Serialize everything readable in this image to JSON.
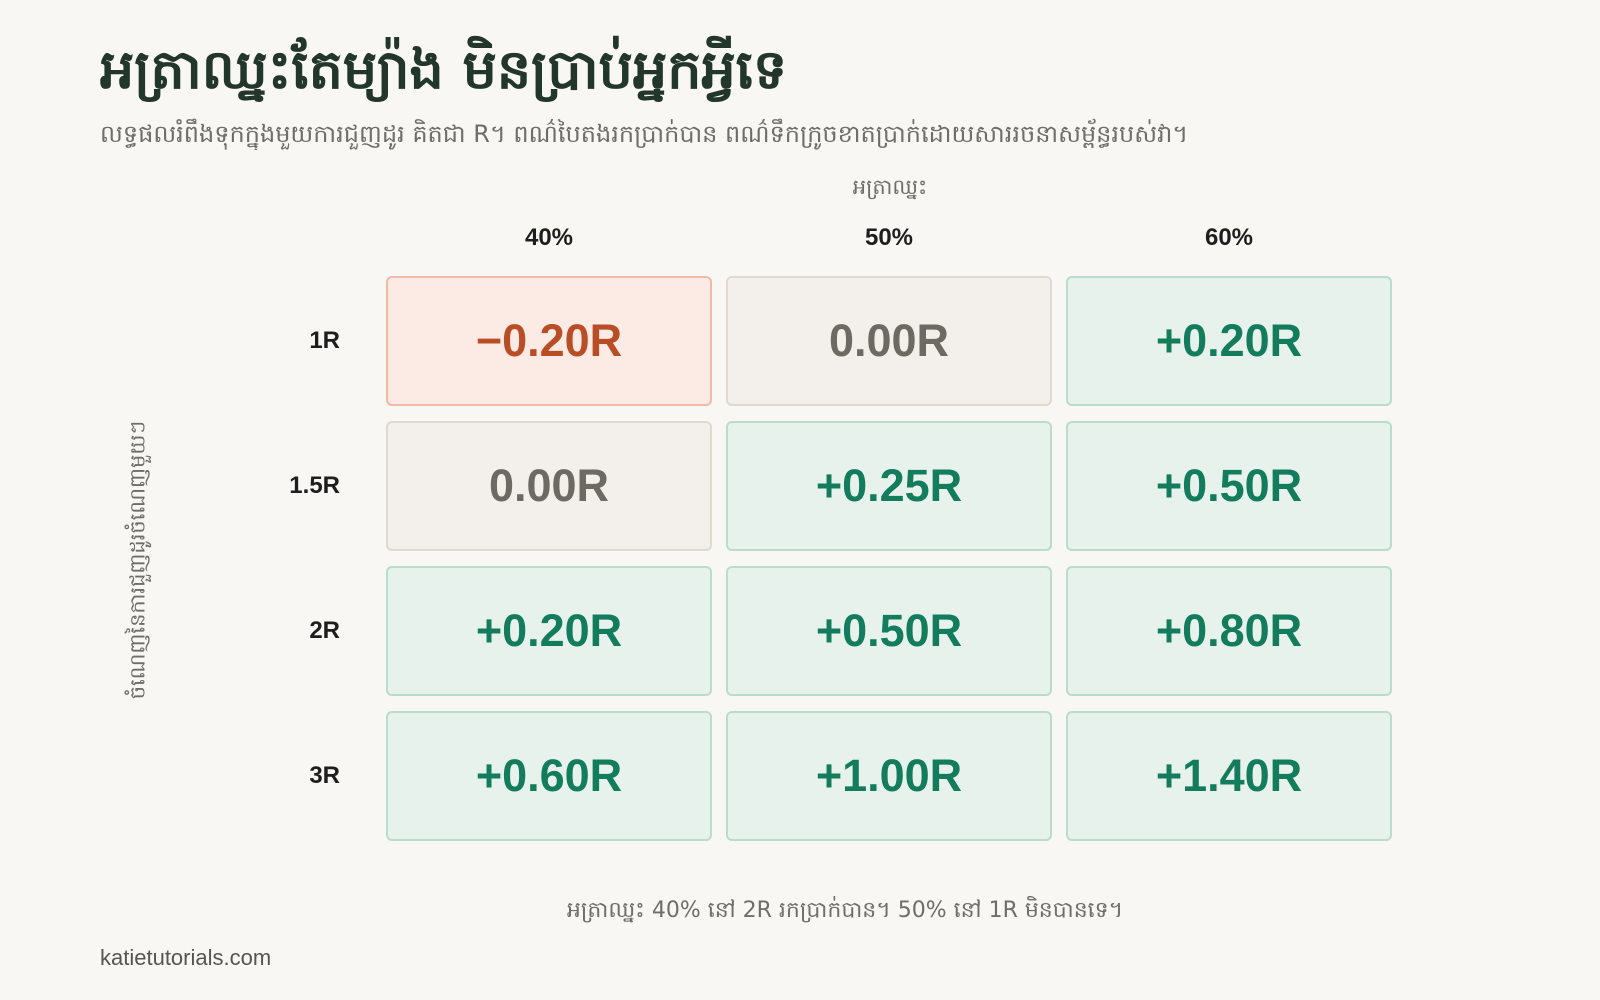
{
  "title": "អត្រាឈ្នះតែម្យ៉ាង មិនប្រាប់អ្នកអ្វីទេ",
  "subtitle": "លទ្ធផលរំពឹងទុកក្នុងមួយការជួញដូរ គិតជា R។ ពណ៌បៃតងរកប្រាក់បាន ពណ៌ទឹកក្រូចខាតប្រាក់ដោយសាររចនាសម្ព័ន្ធរបស់វា។",
  "caption": "អត្រាឈ្នះ 40% នៅ 2R រកប្រាក់បាន។ 50% នៅ 1R មិនបានទេ។",
  "footer": "katietutorials.com",
  "colors": {
    "positive": "#137c5d",
    "positive_bg": "#e8f2ed",
    "breakeven": "#6c6a62",
    "breakeven_bg": "#f3f0eb",
    "negative": "#b94d25",
    "negative_bg": "#fcebe4"
  },
  "chart_data": {
    "type": "heatmap",
    "xlabel": "អត្រាឈ្នះ",
    "ylabel": "ចំណេញនៃការជួញដូរចំណេញមួយៗ",
    "x_labels": [
      "40%",
      "50%",
      "60%"
    ],
    "y_labels": [
      "1R",
      "1.5R",
      "2R",
      "3R"
    ],
    "values": [
      [
        -0.2,
        0.0,
        0.2
      ],
      [
        0.0,
        0.25,
        0.5
      ],
      [
        0.2,
        0.5,
        0.8
      ],
      [
        0.6,
        1.0,
        1.4
      ]
    ],
    "value_labels": [
      [
        "−0.20R",
        "0.00R",
        "+0.20R"
      ],
      [
        "0.00R",
        "+0.25R",
        "+0.50R"
      ],
      [
        "+0.20R",
        "+0.50R",
        "+0.80R"
      ],
      [
        "+0.60R",
        "+1.00R",
        "+1.40R"
      ]
    ]
  }
}
